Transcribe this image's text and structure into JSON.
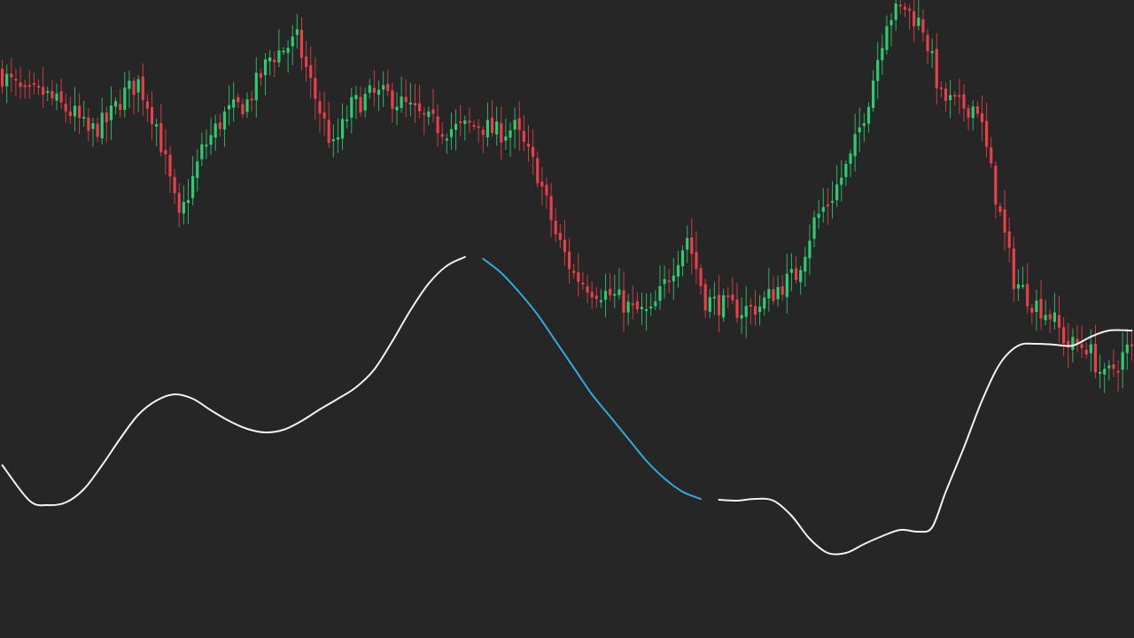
{
  "chart_data": {
    "type": "candlestick",
    "title": "",
    "xlabel": "",
    "ylabel": "",
    "grid": false,
    "legend": "none",
    "ylim": [
      0,
      720
    ],
    "colors": {
      "background": "#262626",
      "up": "#2ecc71",
      "down": "#e8404a",
      "ma_line": "#f2f2f2",
      "ma_highlight": "#34a9d9"
    },
    "anchors": [
      [
        0,
        640
      ],
      [
        6,
        612
      ],
      [
        10,
        615
      ],
      [
        14,
        600
      ],
      [
        17,
        590
      ],
      [
        20,
        570
      ],
      [
        24,
        583
      ],
      [
        28,
        615
      ],
      [
        31,
        627
      ],
      [
        35,
        580
      ],
      [
        40,
        470
      ],
      [
        45,
        550
      ],
      [
        50,
        590
      ],
      [
        55,
        605
      ],
      [
        60,
        655
      ],
      [
        66,
        675
      ],
      [
        70,
        610
      ],
      [
        74,
        552
      ],
      [
        78,
        600
      ],
      [
        82,
        612
      ],
      [
        86,
        612
      ],
      [
        90,
        600
      ],
      [
        94,
        585
      ],
      [
        98,
        575
      ],
      [
        102,
        575
      ],
      [
        106,
        580
      ],
      [
        110,
        570
      ],
      [
        114,
        575
      ],
      [
        119,
        525
      ],
      [
        123,
        455
      ],
      [
        127,
        410
      ],
      [
        131,
        395
      ],
      [
        136,
        385
      ],
      [
        140,
        370
      ],
      [
        144,
        365
      ],
      [
        148,
        410
      ],
      [
        152,
        453
      ],
      [
        156,
        382
      ],
      [
        160,
        375
      ],
      [
        164,
        370
      ],
      [
        168,
        375
      ],
      [
        172,
        395
      ],
      [
        176,
        410
      ],
      [
        180,
        470
      ],
      [
        184,
        500
      ],
      [
        188,
        540
      ],
      [
        192,
        610
      ],
      [
        196,
        700
      ],
      [
        200,
        712
      ],
      [
        204,
        690
      ],
      [
        208,
        610
      ],
      [
        212,
        600
      ],
      [
        216,
        600
      ],
      [
        220,
        500
      ],
      [
        224,
        405
      ],
      [
        228,
        380
      ],
      [
        232,
        365
      ],
      [
        236,
        330
      ],
      [
        240,
        330
      ],
      [
        244,
        292
      ],
      [
        249,
        325
      ]
    ],
    "ma_anchors": [
      [
        0,
        195
      ],
      [
        6,
        155
      ],
      [
        10,
        150
      ],
      [
        14,
        153
      ],
      [
        18,
        168
      ],
      [
        22,
        195
      ],
      [
        26,
        225
      ],
      [
        30,
        252
      ],
      [
        34,
        268
      ],
      [
        38,
        275
      ],
      [
        42,
        270
      ],
      [
        46,
        257
      ],
      [
        50,
        245
      ],
      [
        54,
        236
      ],
      [
        58,
        232
      ],
      [
        62,
        235
      ],
      [
        66,
        245
      ],
      [
        70,
        258
      ],
      [
        74,
        270
      ],
      [
        78,
        283
      ],
      [
        82,
        303
      ],
      [
        86,
        335
      ],
      [
        90,
        370
      ],
      [
        94,
        400
      ],
      [
        98,
        420
      ],
      [
        102,
        430
      ],
      [
        106,
        428
      ],
      [
        110,
        412
      ],
      [
        114,
        390
      ],
      [
        118,
        365
      ],
      [
        122,
        335
      ],
      [
        126,
        305
      ],
      [
        130,
        275
      ],
      [
        134,
        250
      ],
      [
        138,
        225
      ],
      [
        142,
        200
      ],
      [
        146,
        180
      ],
      [
        150,
        165
      ],
      [
        154,
        157
      ],
      [
        158,
        156
      ],
      [
        162,
        155
      ],
      [
        166,
        157
      ],
      [
        170,
        155
      ],
      [
        174,
        138
      ],
      [
        178,
        112
      ],
      [
        182,
        96
      ],
      [
        186,
        96
      ],
      [
        190,
        106
      ],
      [
        194,
        115
      ],
      [
        198,
        122
      ],
      [
        202,
        120
      ],
      [
        205,
        125
      ],
      [
        208,
        165
      ],
      [
        212,
        215
      ],
      [
        216,
        268
      ],
      [
        220,
        310
      ],
      [
        224,
        330
      ],
      [
        228,
        332
      ],
      [
        232,
        331
      ],
      [
        236,
        330
      ],
      [
        240,
        340
      ],
      [
        244,
        347
      ],
      [
        249,
        347
      ]
    ],
    "ma_highlight_range": [
      104,
      155
    ],
    "candle_count": 250
  }
}
